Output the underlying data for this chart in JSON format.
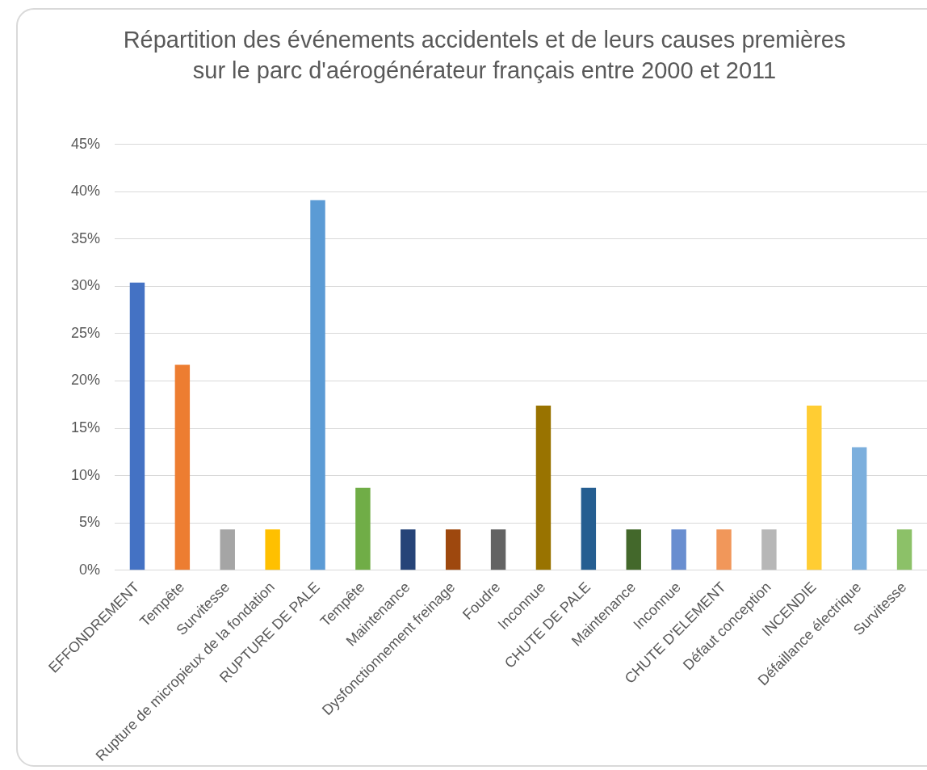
{
  "chart_data": {
    "type": "bar",
    "title": "Répartition des événements accidentels et de leurs causes premières sur le parc d'aérogénérateur français entre 2000 et 2011",
    "categories": [
      "EFFONDREMENT",
      "Tempête",
      "Survitesse",
      "Rupture de micropieux de la fondation",
      "RUPTURE DE PALE",
      "Tempête",
      "Maintenance",
      "Dysfonctionnement freinage",
      "Foudre",
      "Inconnue",
      "CHUTE DE PALE",
      "Maintenance",
      "Inconnue",
      "CHUTE D'ELEMENT",
      "Défaut conception",
      "INCENDIE",
      "Défaillance électrique",
      "Survitesse"
    ],
    "values": [
      30.4,
      21.7,
      4.3,
      4.3,
      39.1,
      8.7,
      4.3,
      4.3,
      4.3,
      17.4,
      8.7,
      4.3,
      4.3,
      4.3,
      4.3,
      17.4,
      13.0,
      4.3
    ],
    "colors": [
      "#4472c4",
      "#ed7d31",
      "#a5a5a5",
      "#ffc000",
      "#5b9bd5",
      "#70ad47",
      "#264478",
      "#9e480e",
      "#636363",
      "#997300",
      "#255e91",
      "#43682b",
      "#698ed0",
      "#f1975a",
      "#b7b7b7",
      "#ffcd33",
      "#7cafdd",
      "#8cc168"
    ],
    "ylim": [
      0,
      45
    ],
    "yticks": [
      {
        "value": 0,
        "label": "0%"
      },
      {
        "value": 5,
        "label": "5%"
      },
      {
        "value": 10,
        "label": "10%"
      },
      {
        "value": 15,
        "label": "15%"
      },
      {
        "value": 20,
        "label": "20%"
      },
      {
        "value": 25,
        "label": "25%"
      },
      {
        "value": 30,
        "label": "30%"
      },
      {
        "value": 35,
        "label": "35%"
      },
      {
        "value": 40,
        "label": "40%"
      },
      {
        "value": 45,
        "label": "45%"
      }
    ],
    "grid": "y",
    "legend": false
  }
}
